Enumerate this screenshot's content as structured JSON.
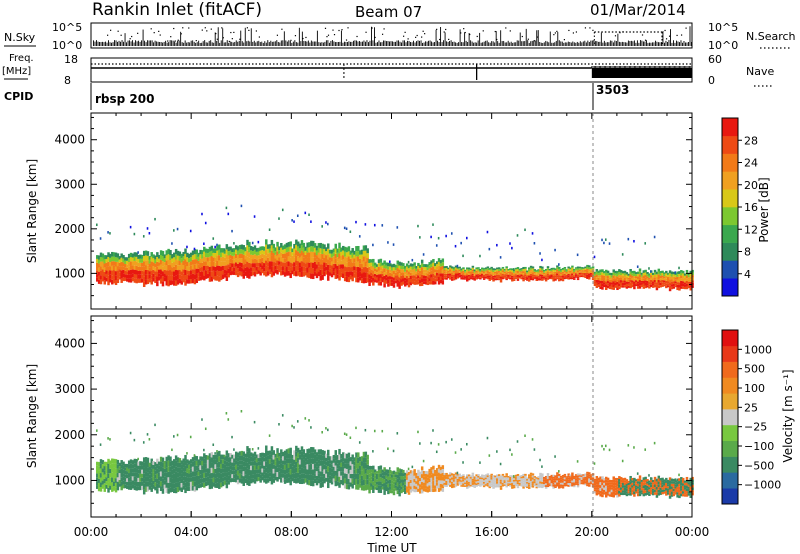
{
  "header": {
    "station": "Rankin Inlet (fitACF)",
    "beam": "Beam 07",
    "date": "01/Mar/2014"
  },
  "top_panels": {
    "nsky_label": "N.Sky",
    "nsky_ticks": [
      "10^5",
      "10^0"
    ],
    "nsearch_label": "N.Search",
    "nsearch_ticks": [
      "10^5",
      "10^0"
    ],
    "freq_label": "Freq.",
    "freq_unit": "[MHz]",
    "freq_ticks": [
      "18",
      "8"
    ],
    "nave_label": "Nave",
    "nave_ticks": [
      "60",
      "0"
    ],
    "cpid_label": "CPID",
    "cpid_segments": [
      {
        "label": "rbsp 200",
        "start_hour": 0
      },
      {
        "label": "3503",
        "start_hour": 20.0
      }
    ]
  },
  "chart_data": [
    {
      "type": "heatmap",
      "quantity": "Power",
      "ylabel": "Slant Range [km]",
      "ylim": [
        200,
        4600
      ],
      "yticks": [
        1000,
        2000,
        3000,
        4000
      ],
      "xlim_hours": [
        0,
        24
      ],
      "colorbar": {
        "label": "Power [dB]",
        "ticks": [
          "4",
          "8",
          "12",
          "16",
          "20",
          "24",
          "28"
        ],
        "colors": [
          "#1010e0",
          "#1e50b0",
          "#2e8a5a",
          "#3aa84e",
          "#7cc830",
          "#d8c818",
          "#f0a020",
          "#f27a18",
          "#ee4a14",
          "#e81810"
        ]
      }
    },
    {
      "type": "heatmap",
      "quantity": "Velocity",
      "ylabel": "Slant Range [km]",
      "ylim": [
        200,
        4600
      ],
      "yticks": [
        1000,
        2000,
        3000,
        4000
      ],
      "xlim_hours": [
        0,
        24
      ],
      "colorbar": {
        "label": "Velocity [m s⁻¹]",
        "ticks": [
          "1000",
          "500",
          "100",
          "25",
          "−25",
          "−100",
          "−500",
          "−1000"
        ],
        "colors": [
          "#1a3aa8",
          "#2a6aa0",
          "#3a8a62",
          "#5aaa4a",
          "#78c840",
          "#c8c8c8",
          "#e8a830",
          "#f08a20",
          "#f06a1c",
          "#e83818",
          "#e01010"
        ]
      }
    }
  ],
  "xaxis": {
    "label": "Time UT",
    "ticks": [
      "00:00",
      "04:00",
      "08:00",
      "12:00",
      "16:00",
      "20:00",
      "00:00"
    ]
  }
}
